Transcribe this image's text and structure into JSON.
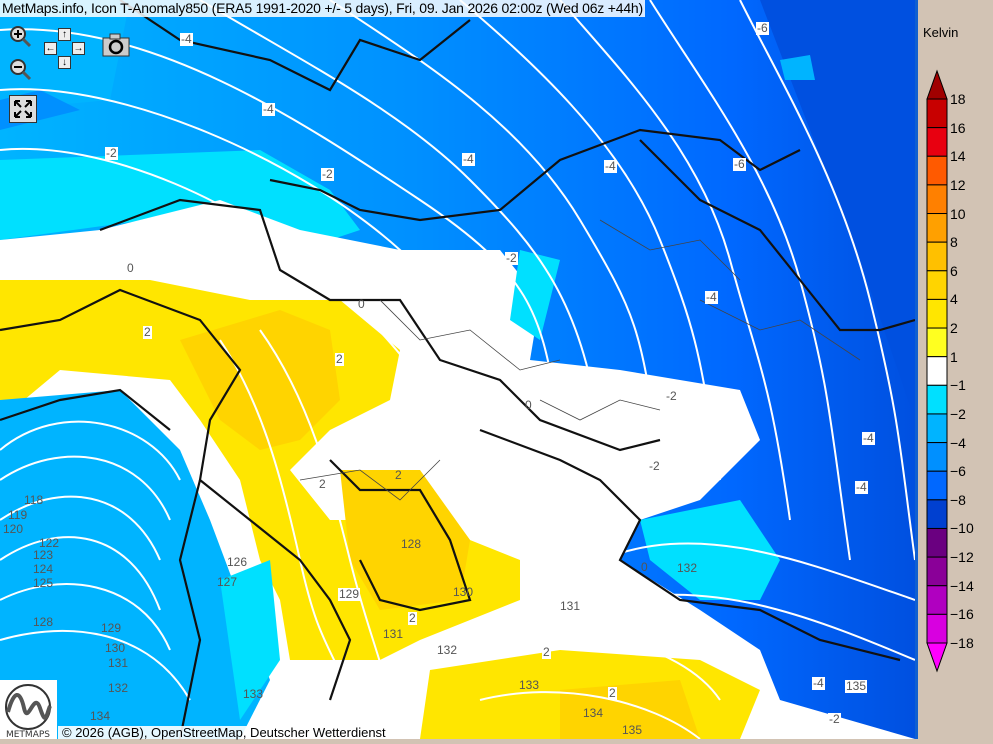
{
  "title": "MetMaps.info, Icon T-Anomaly850 (ERA5 1991-2020 +/- 5 days), Fri, 09. Jan 2026 02:00z (Wed 06z +44h)",
  "controls": {
    "zoom_in": "zoom-in-icon",
    "zoom_out": "zoom-out-icon",
    "pan": [
      "↑",
      "←",
      "→",
      "↓"
    ],
    "camera": "camera-icon",
    "fullscreen": "fullscreen-icon"
  },
  "copyright": "© 2026 (AGB), OpenStreetMap, Deutscher Wetterdienst",
  "logo_text": "METMAPS",
  "legend": {
    "unit": "Kelvin",
    "labels": [
      "18",
      "16",
      "14",
      "12",
      "10",
      "8",
      "6",
      "4",
      "2",
      "1",
      "−1",
      "−2",
      "−4",
      "−6",
      "−8",
      "−10",
      "−12",
      "−14",
      "−16",
      "−18"
    ],
    "colors": [
      "#c80000",
      "#e80010",
      "#ff5a00",
      "#ff8000",
      "#ffa000",
      "#ffc000",
      "#ffd400",
      "#ffe600",
      "#ffff20",
      "#ffffff",
      "#00e0ff",
      "#00b4ff",
      "#0090ff",
      "#0068ff",
      "#0040d0",
      "#6a0080",
      "#8a0098",
      "#b000c0",
      "#d800e0"
    ],
    "top_arrow_color": "#a00000",
    "bottom_arrow_color": "#ff00ff"
  },
  "contour_labels": [
    "-4",
    "-4",
    "-2",
    "-2",
    "-4",
    "-4",
    "-6",
    "-6",
    "-2",
    "-4",
    "0",
    "0",
    "2",
    "2",
    "2",
    "-2",
    "0",
    "-2",
    "-4",
    "-4",
    "2",
    "128",
    "130",
    "2",
    "131",
    "132",
    "0",
    "2",
    "133",
    "2",
    "134",
    "135",
    "-2",
    "-4",
    "118",
    "119",
    "120",
    "122",
    "123",
    "124",
    "125",
    "126",
    "127",
    "128",
    "129",
    "130",
    "131",
    "132",
    "133",
    "134",
    "129",
    "131",
    "132",
    "135"
  ]
}
